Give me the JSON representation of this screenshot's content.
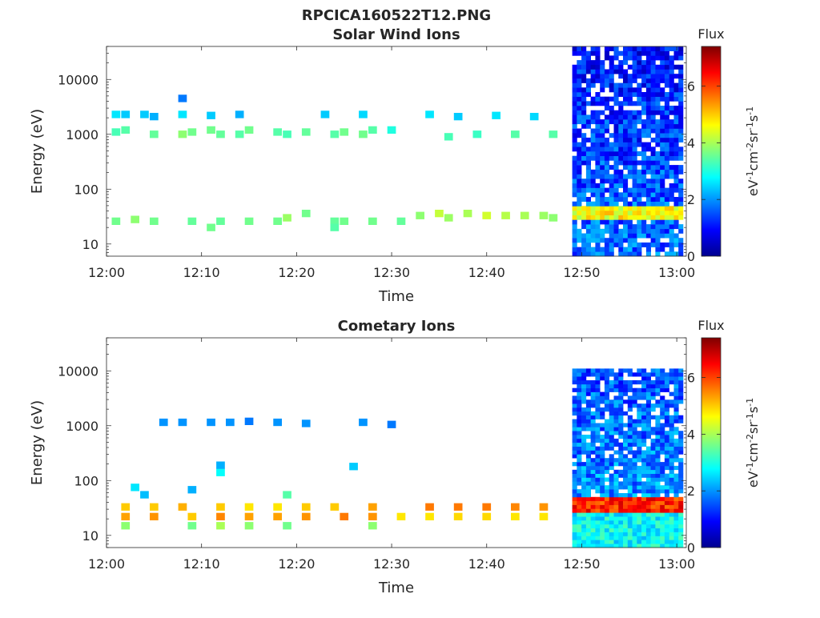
{
  "figure_title": "RPCICA160522T12.PNG",
  "colorbar_colormap": [
    "#00008f",
    "#0000ff",
    "#00ffff",
    "#7fff7f",
    "#ffff00",
    "#ff7f00",
    "#ff0000",
    "#7f0000"
  ],
  "chart_data": [
    {
      "type": "heatmap",
      "title": "Solar Wind Ions",
      "xlabel": "Time",
      "ylabel": "Energy (eV)",
      "xlim": [
        "12:00",
        "13:01"
      ],
      "xticks": [
        "12:00",
        "12:10",
        "12:20",
        "12:30",
        "12:40",
        "12:50",
        "13:00"
      ],
      "ylim": [
        6,
        40000
      ],
      "yscale": "log",
      "yticks": [
        10,
        100,
        1000,
        10000
      ],
      "ytick_labels": [
        "10",
        "100",
        "1000",
        "10000"
      ],
      "colorbar": {
        "label": "Flux",
        "units": "eV-1cm-2sr-1s-1",
        "range": [
          0,
          7.4
        ],
        "ticks": [
          0,
          2,
          4,
          6
        ]
      },
      "cells": [
        {
          "t": "12:01",
          "e": 2300,
          "v": 2.6
        },
        {
          "t": "12:01",
          "e": 1100,
          "v": 3.3
        },
        {
          "t": "12:02",
          "e": 2300,
          "v": 2.4
        },
        {
          "t": "12:02",
          "e": 1200,
          "v": 3.4
        },
        {
          "t": "12:04",
          "e": 2300,
          "v": 2.4
        },
        {
          "t": "12:05",
          "e": 2100,
          "v": 2.2
        },
        {
          "t": "12:05",
          "e": 1000,
          "v": 3.5
        },
        {
          "t": "12:08",
          "e": 4500,
          "v": 1.8
        },
        {
          "t": "12:08",
          "e": 2300,
          "v": 2.6
        },
        {
          "t": "12:08",
          "e": 1000,
          "v": 3.8
        },
        {
          "t": "12:09",
          "e": 1100,
          "v": 3.6
        },
        {
          "t": "12:11",
          "e": 2200,
          "v": 2.4
        },
        {
          "t": "12:11",
          "e": 1200,
          "v": 3.6
        },
        {
          "t": "12:12",
          "e": 1000,
          "v": 3.5
        },
        {
          "t": "12:14",
          "e": 2300,
          "v": 2.2
        },
        {
          "t": "12:14",
          "e": 1000,
          "v": 3.4
        },
        {
          "t": "12:15",
          "e": 1200,
          "v": 3.6
        },
        {
          "t": "12:18",
          "e": 1100,
          "v": 3.4
        },
        {
          "t": "12:19",
          "e": 1000,
          "v": 3.3
        },
        {
          "t": "12:21",
          "e": 1100,
          "v": 3.5
        },
        {
          "t": "12:23",
          "e": 2300,
          "v": 2.4
        },
        {
          "t": "12:24",
          "e": 1000,
          "v": 3.4
        },
        {
          "t": "12:25",
          "e": 1100,
          "v": 3.6
        },
        {
          "t": "12:27",
          "e": 2300,
          "v": 2.5
        },
        {
          "t": "12:27",
          "e": 1000,
          "v": 3.6
        },
        {
          "t": "12:28",
          "e": 1200,
          "v": 3.4
        },
        {
          "t": "12:30",
          "e": 1200,
          "v": 3.0
        },
        {
          "t": "12:34",
          "e": 2300,
          "v": 2.6
        },
        {
          "t": "12:36",
          "e": 900,
          "v": 3.3
        },
        {
          "t": "12:37",
          "e": 2100,
          "v": 2.4
        },
        {
          "t": "12:39",
          "e": 1000,
          "v": 3.2
        },
        {
          "t": "12:41",
          "e": 2200,
          "v": 2.6
        },
        {
          "t": "12:43",
          "e": 1000,
          "v": 3.4
        },
        {
          "t": "12:45",
          "e": 2100,
          "v": 2.5
        },
        {
          "t": "12:47",
          "e": 1000,
          "v": 3.4
        },
        {
          "t": "12:01",
          "e": 26,
          "v": 3.6
        },
        {
          "t": "12:03",
          "e": 28,
          "v": 3.8
        },
        {
          "t": "12:05",
          "e": 26,
          "v": 3.6
        },
        {
          "t": "12:09",
          "e": 26,
          "v": 3.5
        },
        {
          "t": "12:11",
          "e": 20,
          "v": 3.6
        },
        {
          "t": "12:12",
          "e": 26,
          "v": 3.5
        },
        {
          "t": "12:15",
          "e": 26,
          "v": 3.6
        },
        {
          "t": "12:18",
          "e": 26,
          "v": 3.6
        },
        {
          "t": "12:19",
          "e": 30,
          "v": 3.9
        },
        {
          "t": "12:21",
          "e": 36,
          "v": 3.6
        },
        {
          "t": "12:24",
          "e": 26,
          "v": 3.5
        },
        {
          "t": "12:24",
          "e": 20,
          "v": 3.4
        },
        {
          "t": "12:25",
          "e": 26,
          "v": 3.6
        },
        {
          "t": "12:28",
          "e": 26,
          "v": 3.6
        },
        {
          "t": "12:31",
          "e": 26,
          "v": 3.5
        },
        {
          "t": "12:33",
          "e": 33,
          "v": 3.8
        },
        {
          "t": "12:35",
          "e": 36,
          "v": 4.2
        },
        {
          "t": "12:36",
          "e": 30,
          "v": 3.9
        },
        {
          "t": "12:38",
          "e": 36,
          "v": 4.0
        },
        {
          "t": "12:40",
          "e": 33,
          "v": 4.3
        },
        {
          "t": "12:42",
          "e": 33,
          "v": 4.1
        },
        {
          "t": "12:44",
          "e": 33,
          "v": 4.0
        },
        {
          "t": "12:46",
          "e": 33,
          "v": 3.9
        },
        {
          "t": "12:47",
          "e": 30,
          "v": 3.8
        }
      ],
      "dense_region": {
        "start": "12:49",
        "end": "13:01",
        "e_range": [
          6,
          40000
        ],
        "band_energy": 33,
        "band_value": 4.0,
        "background_value": 0.8
      }
    },
    {
      "type": "heatmap",
      "title": "Cometary Ions",
      "xlabel": "Time",
      "ylabel": "Energy (eV)",
      "xlim": [
        "12:00",
        "13:01"
      ],
      "xticks": [
        "12:00",
        "12:10",
        "12:20",
        "12:30",
        "12:40",
        "12:50",
        "13:00"
      ],
      "ylim": [
        6,
        40000
      ],
      "yscale": "log",
      "yticks": [
        10,
        100,
        1000,
        10000
      ],
      "ytick_labels": [
        "10",
        "100",
        "1000",
        "10000"
      ],
      "colorbar": {
        "label": "Flux",
        "units": "eV-1cm-2sr-1s-1",
        "range": [
          0,
          7.4
        ],
        "ticks": [
          0,
          2,
          4,
          6
        ]
      },
      "cells": [
        {
          "t": "12:06",
          "e": 1150,
          "v": 2.0
        },
        {
          "t": "12:08",
          "e": 1150,
          "v": 2.0
        },
        {
          "t": "12:11",
          "e": 1150,
          "v": 2.0
        },
        {
          "t": "12:13",
          "e": 1150,
          "v": 2.0
        },
        {
          "t": "12:15",
          "e": 1200,
          "v": 1.8
        },
        {
          "t": "12:18",
          "e": 1150,
          "v": 2.0
        },
        {
          "t": "12:21",
          "e": 1100,
          "v": 2.0
        },
        {
          "t": "12:27",
          "e": 1150,
          "v": 2.0
        },
        {
          "t": "12:30",
          "e": 1050,
          "v": 1.8
        },
        {
          "t": "12:03",
          "e": 75,
          "v": 2.6
        },
        {
          "t": "12:04",
          "e": 55,
          "v": 2.3
        },
        {
          "t": "12:09",
          "e": 68,
          "v": 2.2
        },
        {
          "t": "12:12",
          "e": 140,
          "v": 2.8
        },
        {
          "t": "12:12",
          "e": 190,
          "v": 2.2
        },
        {
          "t": "12:19",
          "e": 55,
          "v": 3.4
        },
        {
          "t": "12:26",
          "e": 180,
          "v": 2.4
        },
        {
          "t": "12:02",
          "e": 33,
          "v": 5.0
        },
        {
          "t": "12:02",
          "e": 22,
          "v": 5.3
        },
        {
          "t": "12:02",
          "e": 15,
          "v": 3.8
        },
        {
          "t": "12:05",
          "e": 33,
          "v": 5.0
        },
        {
          "t": "12:05",
          "e": 22,
          "v": 5.4
        },
        {
          "t": "12:08",
          "e": 33,
          "v": 5.2
        },
        {
          "t": "12:09",
          "e": 22,
          "v": 5.0
        },
        {
          "t": "12:09",
          "e": 15,
          "v": 3.6
        },
        {
          "t": "12:12",
          "e": 33,
          "v": 5.0
        },
        {
          "t": "12:12",
          "e": 22,
          "v": 5.5
        },
        {
          "t": "12:12",
          "e": 15,
          "v": 4.0
        },
        {
          "t": "12:15",
          "e": 33,
          "v": 4.8
        },
        {
          "t": "12:15",
          "e": 22,
          "v": 5.3
        },
        {
          "t": "12:15",
          "e": 15,
          "v": 3.8
        },
        {
          "t": "12:18",
          "e": 33,
          "v": 4.8
        },
        {
          "t": "12:18",
          "e": 22,
          "v": 5.3
        },
        {
          "t": "12:19",
          "e": 15,
          "v": 3.6
        },
        {
          "t": "12:21",
          "e": 33,
          "v": 5.0
        },
        {
          "t": "12:21",
          "e": 22,
          "v": 5.4
        },
        {
          "t": "12:24",
          "e": 33,
          "v": 5.0
        },
        {
          "t": "12:25",
          "e": 22,
          "v": 5.6
        },
        {
          "t": "12:28",
          "e": 33,
          "v": 5.3
        },
        {
          "t": "12:28",
          "e": 22,
          "v": 5.4
        },
        {
          "t": "12:28",
          "e": 15,
          "v": 3.8
        },
        {
          "t": "12:31",
          "e": 22,
          "v": 4.8
        },
        {
          "t": "12:34",
          "e": 33,
          "v": 5.6
        },
        {
          "t": "12:34",
          "e": 22,
          "v": 4.8
        },
        {
          "t": "12:37",
          "e": 33,
          "v": 5.6
        },
        {
          "t": "12:37",
          "e": 22,
          "v": 4.9
        },
        {
          "t": "12:40",
          "e": 33,
          "v": 5.6
        },
        {
          "t": "12:40",
          "e": 22,
          "v": 4.9
        },
        {
          "t": "12:43",
          "e": 33,
          "v": 5.5
        },
        {
          "t": "12:43",
          "e": 22,
          "v": 4.8
        },
        {
          "t": "12:46",
          "e": 33,
          "v": 5.4
        },
        {
          "t": "12:46",
          "e": 22,
          "v": 4.8
        }
      ],
      "dense_region": {
        "start": "12:49",
        "end": "13:01",
        "e_range": [
          6,
          11000
        ],
        "band_energy": 33,
        "band_value": 5.6,
        "background_value": 1.2
      }
    }
  ]
}
